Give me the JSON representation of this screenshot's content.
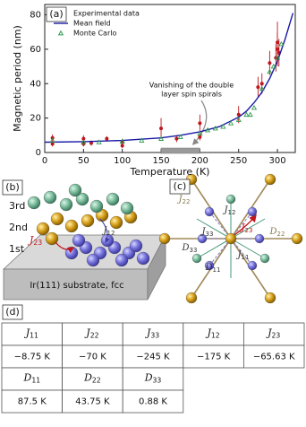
{
  "chart_data": {
    "type": "scatter",
    "panel_label": "(a)",
    "x_label": "Temperature (K)",
    "y_label": "Magnetic period (nm)",
    "xlim": [
      0,
      323
    ],
    "ylim": [
      0,
      86
    ],
    "xticks": [
      0,
      50,
      100,
      150,
      200,
      250,
      300
    ],
    "yticks": [
      0,
      20,
      40,
      60,
      80
    ],
    "legend": "upper left",
    "series": [
      {
        "name": "Experimental data",
        "color": "#c0161d",
        "kind": "errorbar",
        "x": [
          10,
          10,
          50,
          50,
          60,
          80,
          100,
          100,
          150,
          170,
          200,
          200,
          250,
          275,
          280,
          290,
          298,
          300,
          300,
          302
        ],
        "values": [
          8.5,
          5,
          5,
          8,
          5.5,
          8,
          6,
          4,
          14,
          8,
          17,
          9,
          22,
          38,
          40,
          52,
          55,
          60,
          64,
          58
        ],
        "errors": [
          2,
          1.5,
          1.5,
          2,
          1.5,
          1.5,
          2,
          1.5,
          6,
          2,
          5,
          2,
          5,
          6,
          6,
          7,
          8,
          10,
          12,
          8
        ]
      },
      {
        "name": "Mean field",
        "color": "#1a1aa8",
        "kind": "line",
        "x": [
          0,
          50,
          100,
          150,
          175,
          200,
          225,
          250,
          260,
          270,
          280,
          290,
          300,
          310,
          320
        ],
        "values": [
          6,
          6.3,
          7,
          8.5,
          10,
          12,
          15,
          20.5,
          24,
          29,
          35,
          43,
          53,
          66,
          81
        ]
      },
      {
        "name": "Monte Carlo",
        "color": "#2f9a4e",
        "kind": "triangle",
        "x": [
          10,
          50,
          70,
          100,
          125,
          150,
          175,
          200,
          210,
          220,
          230,
          240,
          250,
          260,
          265,
          270,
          280,
          290,
          295,
          300,
          305
        ],
        "values": [
          7,
          6,
          6,
          6.5,
          7,
          8,
          9,
          11,
          13,
          14,
          15,
          17,
          19,
          22,
          22,
          26,
          37,
          47,
          50,
          55,
          63
        ]
      }
    ],
    "annotation": {
      "lines": [
        "Vanishing of the double",
        "layer spin spirals"
      ],
      "x_range": [
        150,
        200
      ]
    }
  },
  "panel_b": {
    "label": "(b)",
    "layers": [
      "3rd",
      "2nd",
      "1st"
    ],
    "substrate": "Ir(111) substrate, fcc",
    "couplings": [
      {
        "symbol": "J",
        "index": "23"
      },
      {
        "symbol": "J",
        "index": "12"
      }
    ]
  },
  "panel_c": {
    "label": "(c)",
    "labels": [
      {
        "symbol": "J",
        "index": "22"
      },
      {
        "symbol": "J",
        "index": "12"
      },
      {
        "symbol": "J",
        "index": "33"
      },
      {
        "symbol": "J",
        "index": "23"
      },
      {
        "symbol": "D",
        "index": "22"
      },
      {
        "symbol": "D",
        "index": "33"
      },
      {
        "symbol": "J",
        "index": "11"
      },
      {
        "symbol": "D",
        "index": "11"
      }
    ]
  },
  "table": {
    "label": "(d)",
    "rows": [
      [
        {
          "symbol": "J",
          "index": "11"
        },
        {
          "symbol": "J",
          "index": "22"
        },
        {
          "symbol": "J",
          "index": "33"
        },
        {
          "symbol": "J",
          "index": "12"
        },
        {
          "symbol": "J",
          "index": "23"
        }
      ],
      [
        "−8.75 K",
        "−70 K",
        "−245 K",
        "−175 K",
        "−65.63 K"
      ],
      [
        {
          "symbol": "D",
          "index": "11"
        },
        {
          "symbol": "D",
          "index": "22"
        },
        {
          "symbol": "D",
          "index": "33"
        }
      ],
      [
        "87.5 K",
        "43.75 K",
        "0.88 K"
      ]
    ]
  }
}
